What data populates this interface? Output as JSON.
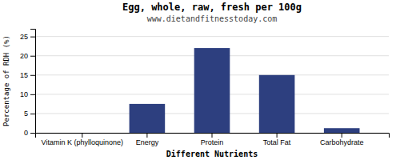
{
  "chart_data": {
    "type": "bar",
    "title": "Egg, whole, raw, fresh per 100g",
    "subtitle": "www.dietandfitnesstoday.com",
    "xlabel": "Different Nutrients",
    "ylabel": "Percentage of RDH (%)",
    "categories": [
      "Vitamin K (phylloquinone)",
      "Energy",
      "Protein",
      "Total Fat",
      "Carbohydrate"
    ],
    "values": [
      0.0,
      7.5,
      22.0,
      15.0,
      1.2
    ],
    "color": "#2d3f7f",
    "ylim": [
      0,
      27
    ],
    "yticks": [
      0,
      5,
      10,
      15,
      20,
      25
    ],
    "grid": true
  }
}
